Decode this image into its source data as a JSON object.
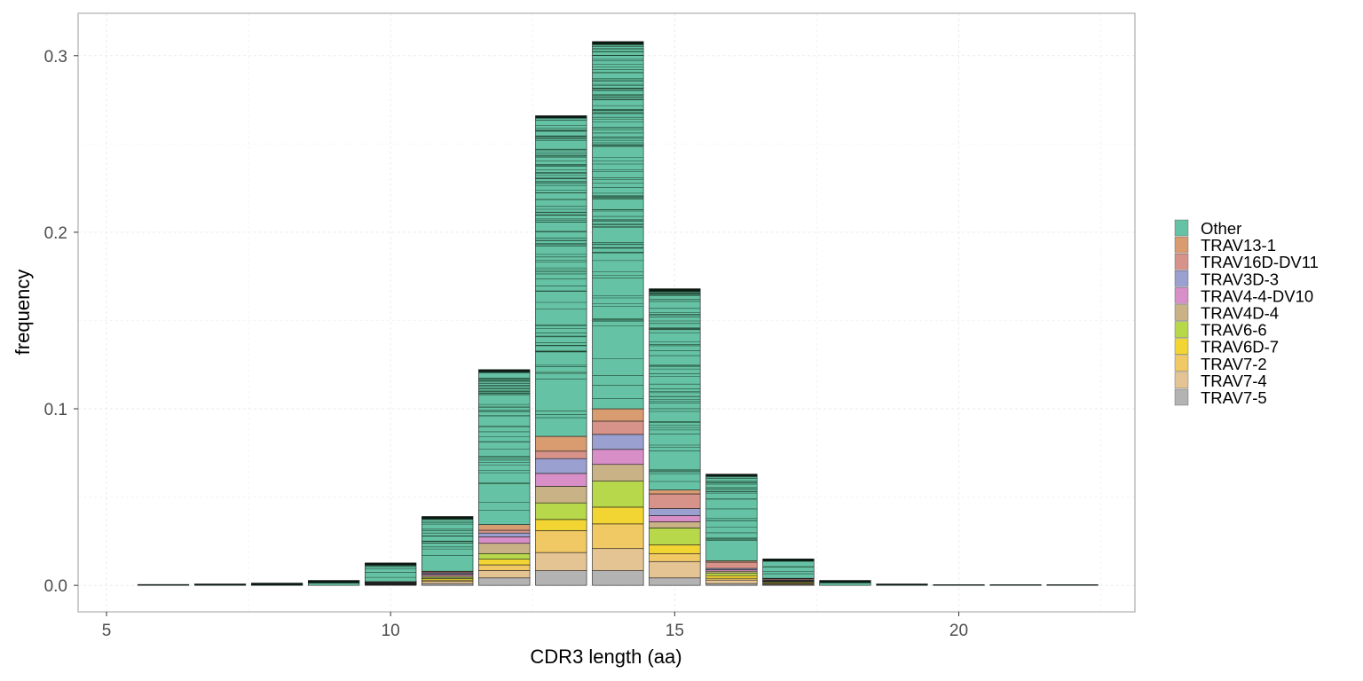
{
  "chart_data": {
    "type": "bar",
    "stacked": true,
    "xlabel": "CDR3 length (aa)",
    "ylabel": "frequency",
    "xlim": [
      4.5,
      23.1
    ],
    "ylim": [
      -0.015,
      0.324
    ],
    "x_ticks": [
      5,
      10,
      15,
      20
    ],
    "y_ticks": [
      0.0,
      0.1,
      0.2,
      0.3
    ],
    "x_tick_labels": [
      "5",
      "10",
      "15",
      "20"
    ],
    "y_tick_labels": [
      "0.0",
      "0.1",
      "0.2",
      "0.3"
    ],
    "grid": true,
    "legend_position": "right",
    "categories": [
      6,
      7,
      8,
      9,
      10,
      11,
      12,
      13,
      14,
      15,
      16,
      17,
      18,
      19,
      20,
      21,
      22
    ],
    "totals": [
      0.0005,
      0.0008,
      0.0013,
      0.0028,
      0.0125,
      0.038,
      0.122,
      0.266,
      0.308,
      0.168,
      0.063,
      0.015,
      0.0028,
      0.0008,
      0.0004,
      0.0003,
      0.0003
    ],
    "series": [
      {
        "name": "TRAV7-5",
        "color": "#b3b3b3",
        "values": [
          0,
          0,
          0,
          0,
          0.0002,
          0.001,
          0.0042,
          0.0083,
          0.0083,
          0.0042,
          0.001,
          0.0003,
          0,
          0,
          0,
          0,
          0
        ]
      },
      {
        "name": "TRAV7-4",
        "color": "#e5c494",
        "values": [
          0,
          0,
          0,
          0,
          0.0003,
          0.0012,
          0.0042,
          0.0103,
          0.0125,
          0.0093,
          0.002,
          0.0005,
          0,
          0,
          0,
          0,
          0
        ]
      },
      {
        "name": "TRAV7-2",
        "color": "#f0c964",
        "values": [
          0,
          0,
          0,
          0,
          0.0002,
          0.0008,
          0.0032,
          0.0124,
          0.014,
          0.0045,
          0.001,
          0.0004,
          0,
          0,
          0,
          0,
          0
        ]
      },
      {
        "name": "TRAV6D-7",
        "color": "#f2d532",
        "values": [
          0,
          0,
          0,
          0,
          0.0002,
          0.0008,
          0.0032,
          0.0063,
          0.0095,
          0.005,
          0.0015,
          0.0005,
          0,
          0,
          0,
          0,
          0
        ]
      },
      {
        "name": "TRAV6-6",
        "color": "#b8d84c",
        "values": [
          0,
          0,
          0,
          0,
          0.0002,
          0.0008,
          0.0032,
          0.0094,
          0.0147,
          0.0095,
          0.0015,
          0.0005,
          0,
          0,
          0,
          0,
          0
        ]
      },
      {
        "name": "TRAV4D-4",
        "color": "#c9b285",
        "values": [
          0,
          0,
          0,
          0,
          0.0002,
          0.001,
          0.0058,
          0.0094,
          0.0095,
          0.0035,
          0.001,
          0.0003,
          0,
          0,
          0,
          0,
          0
        ]
      },
      {
        "name": "TRAV4-4-DV10",
        "color": "#d88ec7",
        "values": [
          0,
          0,
          0,
          0,
          0.0002,
          0.0008,
          0.0037,
          0.0073,
          0.0085,
          0.0035,
          0.0008,
          0.0003,
          0,
          0,
          0,
          0,
          0
        ]
      },
      {
        "name": "TRAV3D-3",
        "color": "#9aa0d0",
        "values": [
          0,
          0,
          0,
          0,
          0.0002,
          0.0006,
          0.0021,
          0.0084,
          0.0085,
          0.004,
          0.0008,
          0.0003,
          0,
          0,
          0,
          0,
          0
        ]
      },
      {
        "name": "TRAV16D-DV11",
        "color": "#d7938a",
        "values": [
          0,
          0,
          0,
          0,
          0.0002,
          0.0006,
          0.0016,
          0.0042,
          0.0075,
          0.0083,
          0.0035,
          0.0006,
          0,
          0,
          0,
          0,
          0
        ]
      },
      {
        "name": "TRAV13-1",
        "color": "#d99c70",
        "values": [
          0,
          0,
          0,
          0,
          0.0002,
          0.0004,
          0.0032,
          0.0084,
          0.007,
          0.0022,
          0.0008,
          0.0003,
          0,
          0,
          0,
          0,
          0
        ]
      },
      {
        "name": "Other",
        "color": "#66c2a5",
        "values": [
          0.0005,
          0.0008,
          0.0013,
          0.0028,
          0.0106,
          0.031,
          0.0878,
          0.1816,
          0.208,
          0.114,
          0.0491,
          0.011,
          0.0028,
          0.0008,
          0.0004,
          0.0003,
          0.0003
        ]
      }
    ],
    "legend_order": [
      "Other",
      "TRAV13-1",
      "TRAV16D-DV11",
      "TRAV3D-3",
      "TRAV4-4-DV10",
      "TRAV4D-4",
      "TRAV6-6",
      "TRAV6D-7",
      "TRAV7-2",
      "TRAV7-4",
      "TRAV7-5"
    ]
  }
}
